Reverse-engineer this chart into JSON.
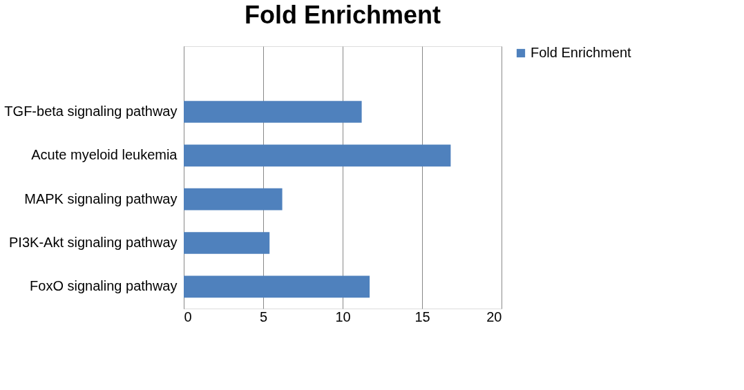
{
  "chart_data": {
    "type": "bar",
    "orientation": "horizontal",
    "title": "Fold Enrichment",
    "categories": [
      null,
      "TGF-beta signaling pathway",
      "Acute myeloid leukemia",
      "MAPK signaling pathway",
      "PI3K-Akt signaling pathway",
      "FoxO signaling pathway"
    ],
    "series": [
      {
        "name": "Fold Enrichment",
        "color": "#4f81bd",
        "values": [
          null,
          11.2,
          16.8,
          6.2,
          5.4,
          11.7
        ]
      }
    ],
    "xlim": [
      0,
      20
    ],
    "xticks": [
      0,
      5,
      10,
      15,
      20
    ],
    "grid": "x",
    "legend": "right"
  }
}
